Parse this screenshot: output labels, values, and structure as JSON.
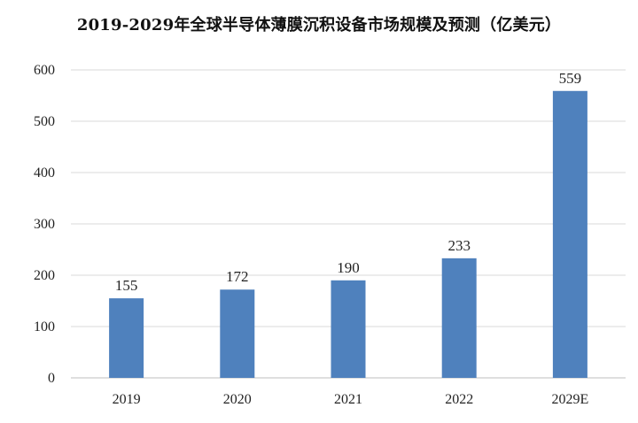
{
  "chart_data": {
    "type": "bar",
    "title": "2019-2029年全球半导体薄膜沉积设备市场规模及预测（亿美元）",
    "categories": [
      "2019",
      "2020",
      "2021",
      "2022",
      "2029E"
    ],
    "series": [
      {
        "values": [
          155,
          172,
          190,
          233,
          559
        ],
        "data_labels": [
          "155",
          "172",
          "190",
          "233",
          "559"
        ]
      }
    ],
    "y_ticks": [
      "0",
      "100",
      "200",
      "300",
      "400",
      "500",
      "600"
    ],
    "ylim": [
      0,
      600
    ],
    "grid": true,
    "legend": "none",
    "bar_color": "#4f81bd",
    "grid_color": "#d9d9d9"
  }
}
